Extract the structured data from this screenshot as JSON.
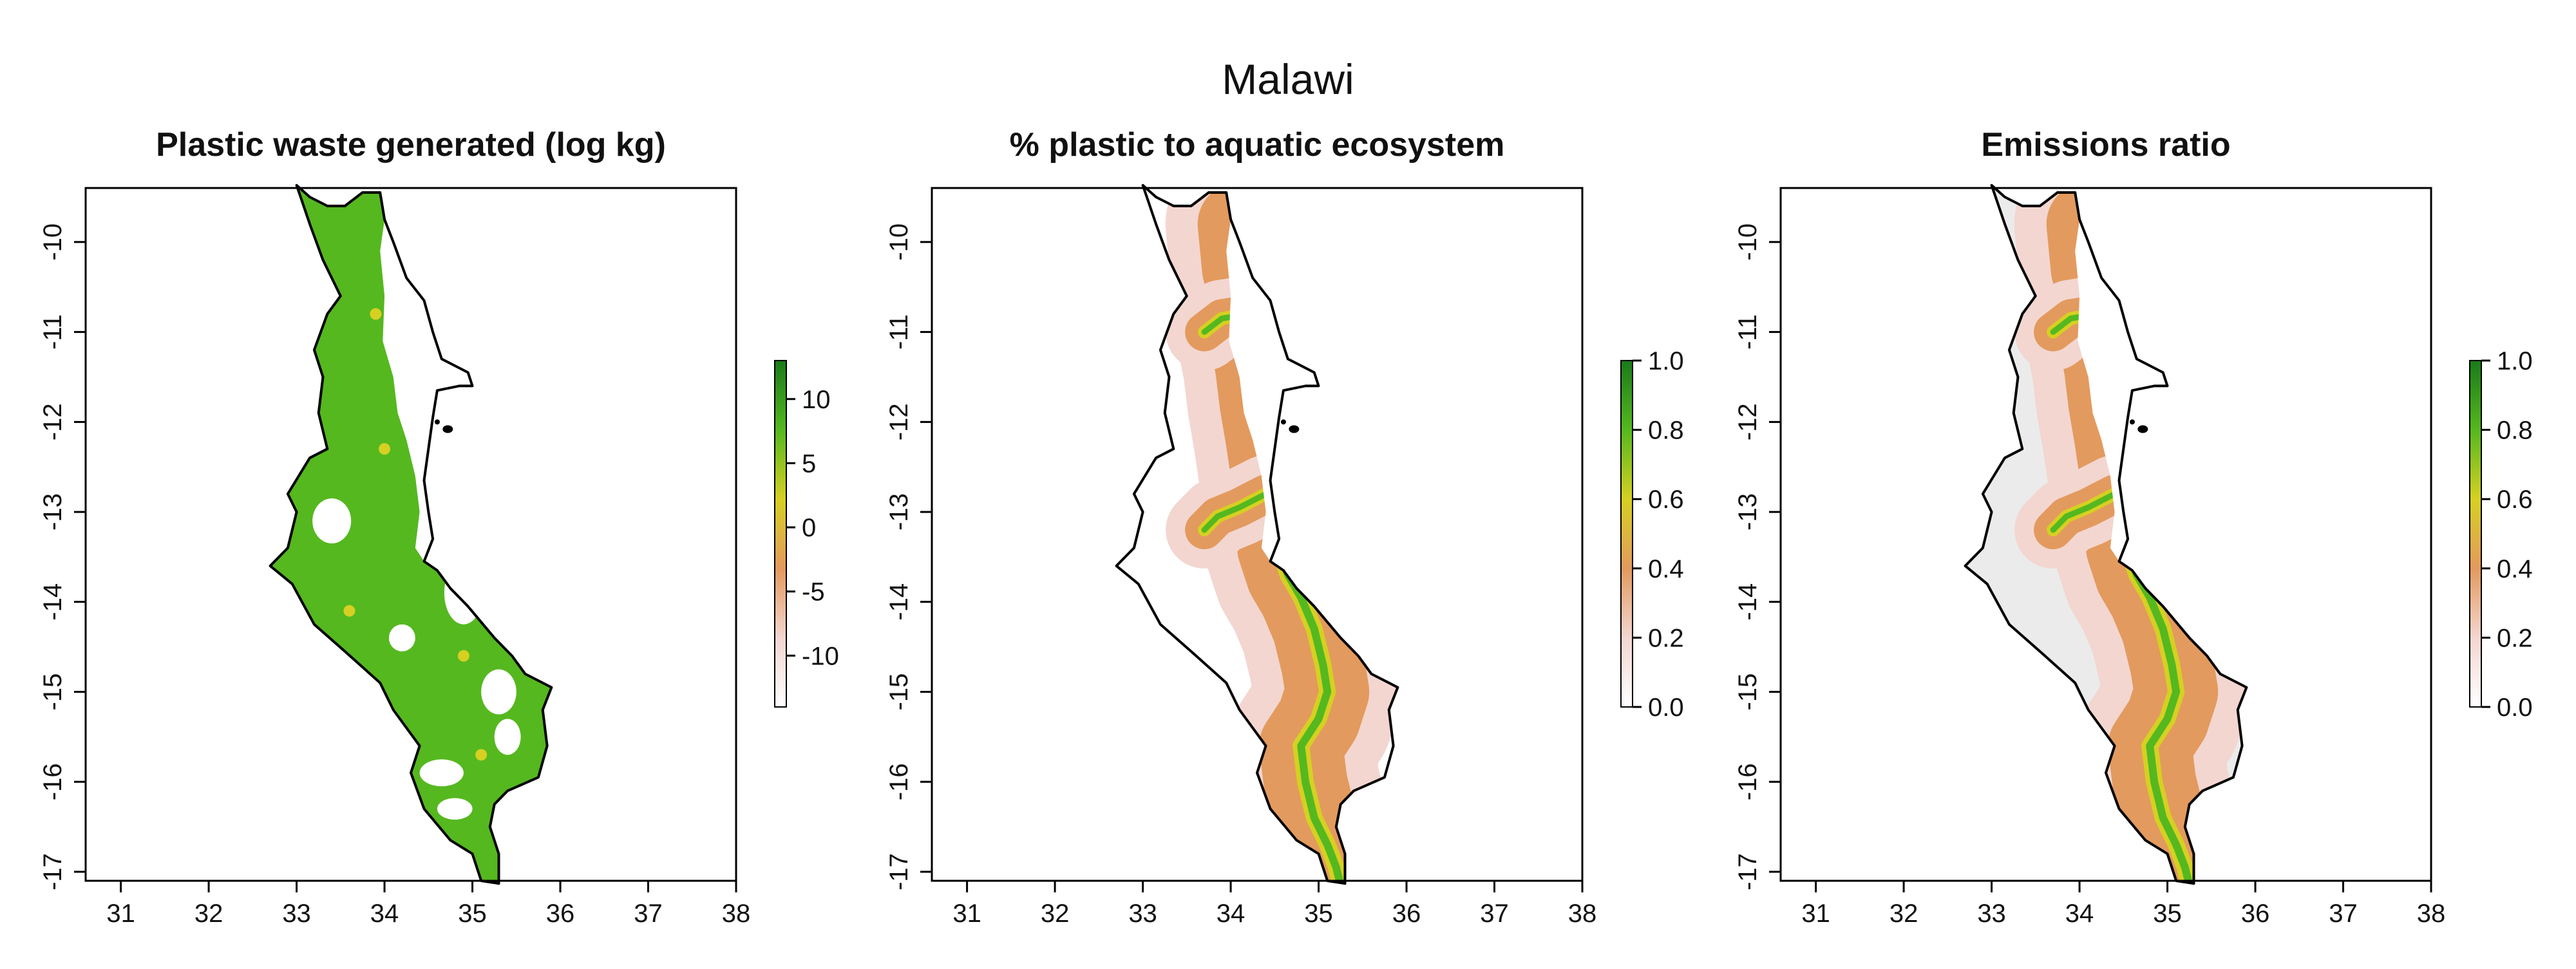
{
  "figure": {
    "title": "Malawi"
  },
  "colors": {
    "high": "#1a7a1a",
    "green": "#55b81f",
    "yellow": "#d6d022",
    "orange": "#e39a5e",
    "light": "#f3d6d0",
    "no_data_fill": "#ebebeb",
    "outline": "#000000"
  },
  "chart_data": [
    {
      "type": "heatmap",
      "title": "Plastic waste generated (log kg)",
      "xlim": [
        30.6,
        38.0
      ],
      "ylim": [
        -17.1,
        -9.4
      ],
      "x_ticks": [
        "31",
        "32",
        "33",
        "34",
        "35",
        "36",
        "37",
        "38"
      ],
      "y_ticks": [
        "-10",
        "-11",
        "-12",
        "-13",
        "-14",
        "-15",
        "-16",
        "-17"
      ],
      "legend": {
        "min": -14,
        "max": 13,
        "ticks": [
          "10",
          "5",
          "0",
          "-5",
          "-10"
        ],
        "tick_values": [
          10,
          5,
          0,
          -5,
          -10
        ]
      },
      "map_style": "filled"
    },
    {
      "type": "heatmap",
      "title": "% plastic to aquatic ecosystem",
      "xlim": [
        30.6,
        38.0
      ],
      "ylim": [
        -17.1,
        -9.4
      ],
      "x_ticks": [
        "31",
        "32",
        "33",
        "34",
        "35",
        "36",
        "37",
        "38"
      ],
      "y_ticks": [
        "-10",
        "-11",
        "-12",
        "-13",
        "-14",
        "-15",
        "-16",
        "-17"
      ],
      "legend": {
        "min": 0,
        "max": 1,
        "ticks": [
          "1.0",
          "0.8",
          "0.6",
          "0.4",
          "0.2",
          "0.0"
        ],
        "tick_values": [
          1.0,
          0.8,
          0.6,
          0.4,
          0.2,
          0.0
        ]
      },
      "map_style": "river"
    },
    {
      "type": "heatmap",
      "title": "Emissions ratio",
      "xlim": [
        30.6,
        38.0
      ],
      "ylim": [
        -17.1,
        -9.4
      ],
      "x_ticks": [
        "31",
        "32",
        "33",
        "34",
        "35",
        "36",
        "37",
        "38"
      ],
      "y_ticks": [
        "-10",
        "-11",
        "-12",
        "-13",
        "-14",
        "-15",
        "-16",
        "-17"
      ],
      "legend": {
        "min": 0,
        "max": 1,
        "ticks": [
          "1.0",
          "0.8",
          "0.6",
          "0.4",
          "0.2",
          "0.0"
        ],
        "tick_values": [
          1.0,
          0.8,
          0.6,
          0.4,
          0.2,
          0.0
        ]
      },
      "map_style": "river-grey"
    }
  ]
}
